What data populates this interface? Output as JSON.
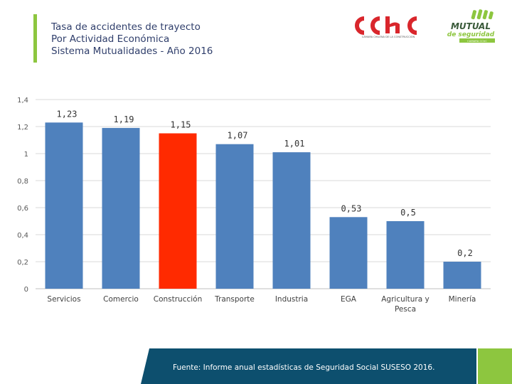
{
  "header": {
    "title_lines": [
      "Tasa de accidentes de trayecto",
      "Por Actividad Económica",
      "Sistema Mutualidades - Año 2016"
    ],
    "logo_cchc": {
      "brand": "cchc",
      "tagline": "CÁMARA CHILENA DE LA CONSTRUCCIÓN"
    },
    "logo_mutual": {
      "line1": "MUTUAL",
      "line2": "de seguridad",
      "tagline": "CAMARA CChC"
    }
  },
  "chart_data": {
    "type": "bar",
    "categories": [
      "Servicios",
      "Comercio",
      "Construcción",
      "Transporte",
      "Industria",
      "EGA",
      "Agricultura y Pesca",
      "Minería"
    ],
    "category_lines": [
      [
        "Servicios"
      ],
      [
        "Comercio"
      ],
      [
        "Construcción"
      ],
      [
        "Transporte"
      ],
      [
        "Industria"
      ],
      [
        "EGA"
      ],
      [
        "Agricultura y",
        "Pesca"
      ],
      [
        "Minería"
      ]
    ],
    "values": [
      1.23,
      1.19,
      1.15,
      1.07,
      1.01,
      0.53,
      0.5,
      0.2
    ],
    "value_labels": [
      "1,23",
      "1,19",
      "1,15",
      "1,07",
      "1,01",
      "0,53",
      "0,5",
      "0,2"
    ],
    "highlight_index": 2,
    "ylim": [
      0,
      1.4
    ],
    "yticks": [
      0,
      0.2,
      0.4,
      0.6,
      0.8,
      1,
      1.2,
      1.4
    ],
    "ytick_labels": [
      "0",
      "0,2",
      "0,4",
      "0,6",
      "0,8",
      "1",
      "1,2",
      "1,4"
    ],
    "grid": true,
    "colors": {
      "bar": "#4f81bd",
      "highlight": "#ff2a00"
    },
    "title": "",
    "xlabel": "",
    "ylabel": ""
  },
  "footer": {
    "source": "Fuente: Informe anual estadísticas de Seguridad Social SUSESO 2016.",
    "colors": {
      "panel": "#0d4f6e",
      "accent": "#8dc63f"
    }
  }
}
